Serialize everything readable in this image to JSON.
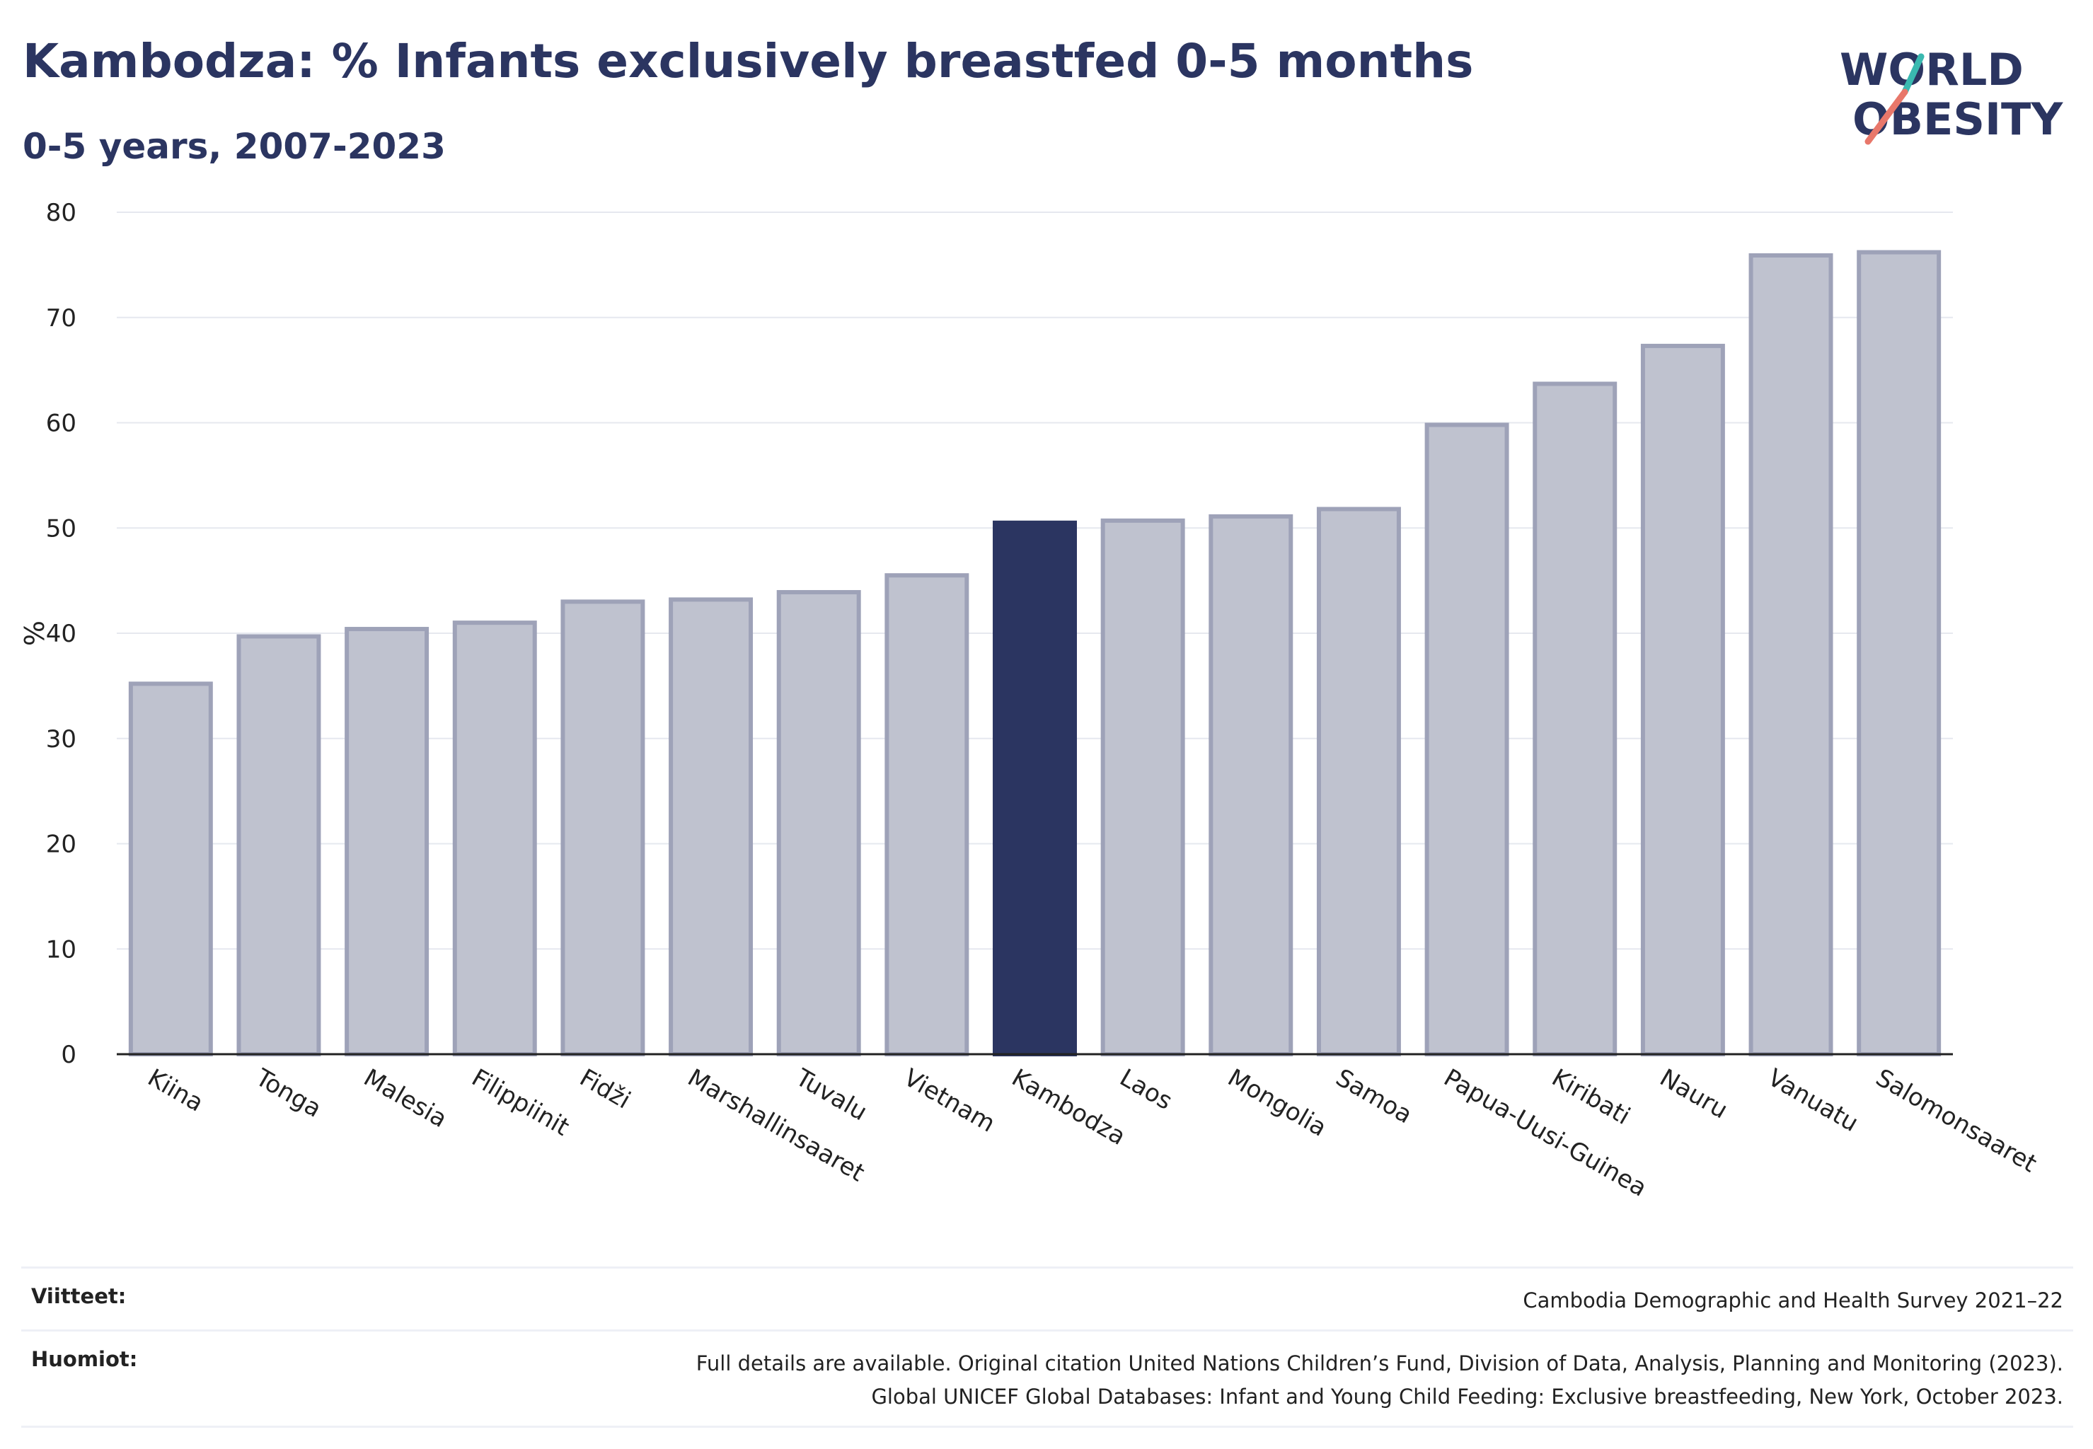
{
  "header": {
    "title": "Kambodza: % Infants exclusively breastfed 0-5 months",
    "subtitle": "0-5 years, 2007-2023"
  },
  "logo": {
    "line1": "WORLD",
    "line2": "OBESITY"
  },
  "colors": {
    "highlight": "#2b3561",
    "bar_fill": "#bfc2cf",
    "bar_stroke": "#9ea2b8",
    "grid": "#e6e8ef",
    "logo_teal": "#3ab9b0",
    "logo_coral": "#e8776a"
  },
  "chart_data": {
    "type": "bar",
    "ylabel": "%",
    "ylim": [
      0,
      80
    ],
    "yticks": [
      0,
      10,
      20,
      30,
      40,
      50,
      60,
      70,
      80
    ],
    "grid": true,
    "highlight": "Kambodza",
    "categories": [
      "Kiina",
      "Tonga",
      "Malesia",
      "Filippiinit",
      "Fidži",
      "Marshallinsaaret",
      "Tuvalu",
      "Vietnam",
      "Kambodza",
      "Laos",
      "Mongolia",
      "Samoa",
      "Papua-Uusi-Guinea",
      "Kiribati",
      "Nauru",
      "Vanuatu",
      "Salomonsaaret"
    ],
    "values": [
      35.2,
      39.7,
      40.4,
      41.0,
      43.0,
      43.2,
      43.9,
      45.5,
      50.5,
      50.7,
      51.1,
      51.8,
      59.8,
      63.7,
      67.3,
      75.9,
      76.2
    ]
  },
  "footer": {
    "references_label": "Viitteet:",
    "references": "Cambodia Demographic and Health Survey 2021–22",
    "notes_label": "Huomiot:",
    "notes_line1": "Full details are available. Original citation United Nations Children’s Fund, Division of Data, Analysis, Planning and Monitoring (2023).",
    "notes_line2": "Global UNICEF Global Databases: Infant and Young Child Feeding: Exclusive breastfeeding, New York, October 2023."
  }
}
